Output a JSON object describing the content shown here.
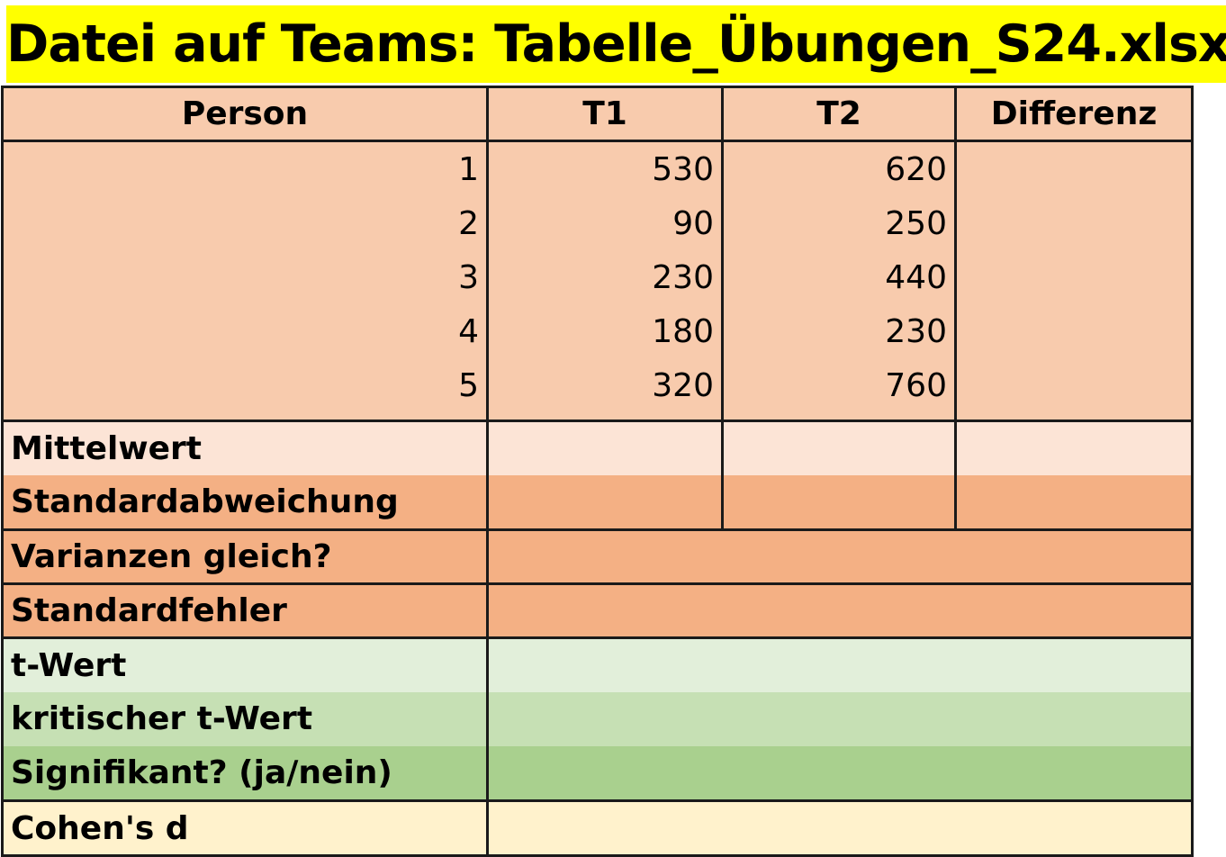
{
  "title": "Datei auf Teams: Tabelle_Übungen_S24.xlsx",
  "table": {
    "headers": [
      "Person",
      "T1",
      "T2",
      "Differenz"
    ],
    "persons": [
      "1",
      "2",
      "3",
      "4",
      "5"
    ],
    "t1": [
      "530",
      "90",
      "230",
      "180",
      "320"
    ],
    "t2": [
      "620",
      "250",
      "440",
      "230",
      "760"
    ],
    "rows": {
      "mittelwert": "Mittelwert",
      "standardabweichung": "Standardabweichung",
      "varianzen_gleich": "Varianzen gleich?",
      "standardfehler": "Standardfehler",
      "t_wert": "t-Wert",
      "kritischer_t_wert": "kritischer t-Wert",
      "signifikant": "Signifikant? (ja/nein)",
      "cohens_d": "Cohen's d"
    }
  },
  "colors": {
    "title_bg": "#ffff00",
    "header_bg": "#f8cbad",
    "mittelwert_bg": "#fce4d6",
    "orange_bg": "#f4b084",
    "t_wert_bg": "#e2efda",
    "kritisch_bg": "#c6e0b4",
    "signifikant_bg": "#a9d08e",
    "cohen_bg": "#fff2cc"
  }
}
